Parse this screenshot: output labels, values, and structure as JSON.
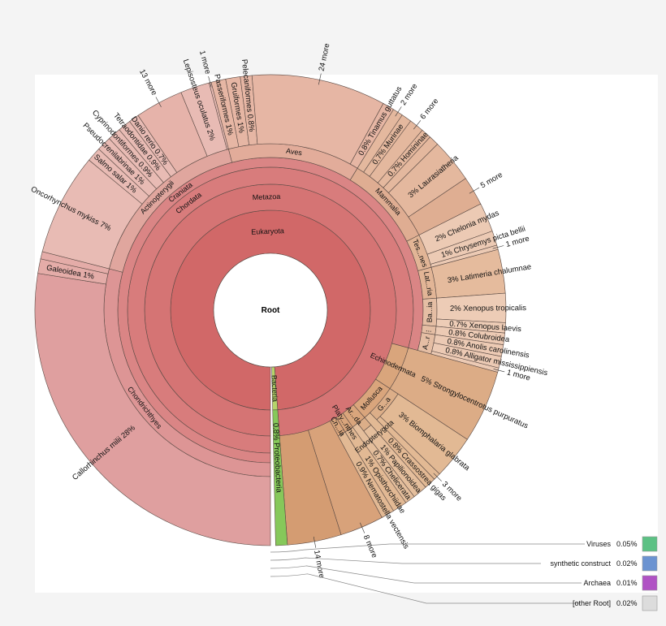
{
  "chart_data": {
    "type": "sunburst",
    "title": "",
    "unit": "percent of Root",
    "root": {
      "name": "Root",
      "children": [
        {
          "name": "Eukaryota",
          "color": "#d16868",
          "children": [
            {
              "name": "Metazoa",
              "color": "#d57474",
              "children": [
                {
                  "name": "Chordata",
                  "color": "#d87c7c",
                  "children": [
                    {
                      "name": "Craniata",
                      "color": "#da8585",
                      "children": [
                        {
                          "name": "Chondrichthyes",
                          "color": "#dd9595",
                          "leaf_color": "#df9f9f",
                          "children": [
                            {
                              "name": "Callorhinchus milii",
                              "pct": "28%",
                              "v": 27.5
                            },
                            {
                              "name": "Galeoidea",
                              "pct": "1%",
                              "v": 1,
                              "color": "#e4aca8"
                            },
                            {
                              "name": "",
                              "v": 0.5,
                              "color": "#e4aca8"
                            }
                          ]
                        },
                        {
                          "name": "Actinopterygii",
                          "color": "#e0a69e",
                          "leaf_color": "#e8bbb4",
                          "children": [
                            {
                              "name": "Oncorhynchus mykiss",
                              "pct": "7%",
                              "v": 7
                            },
                            {
                              "name": "Salmo salar",
                              "pct": "1%",
                              "v": 1
                            },
                            {
                              "name": "Pseudocrenilabrinae",
                              "pct": "1%",
                              "v": 1
                            },
                            {
                              "name": "Cyprinodontiformes",
                              "pct": "0.9%",
                              "v": 0.9
                            },
                            {
                              "name": "Tetraodontidae",
                              "pct": "0.9%",
                              "v": 0.9
                            },
                            {
                              "name": "Danio rerio",
                              "pct": "0.7%",
                              "v": 0.7
                            },
                            {
                              "name": "13 more",
                              "v": 3.3,
                              "color": "#e6b3aa"
                            },
                            {
                              "name": "Lepisosteus oculatus",
                              "pct": "2%",
                              "v": 2
                            },
                            {
                              "name": "1 more",
                              "v": 0.15
                            }
                          ]
                        },
                        {
                          "name": "Aves",
                          "color": "#e2ac9a",
                          "leaf_color": "#e6b6a4",
                          "children": [
                            {
                              "name": "Passeriformes",
                              "pct": "1%",
                              "v": 1
                            },
                            {
                              "name": "Gruiformes",
                              "pct": "1%",
                              "v": 1
                            },
                            {
                              "name": "Pelecaniformes",
                              "pct": "0.8%",
                              "v": 0.8
                            },
                            {
                              "name": "24 more",
                              "v": 9.2
                            },
                            {
                              "name": "Tinamus guttatus",
                              "pct": "0.8%",
                              "v": 0.8
                            }
                          ]
                        },
                        {
                          "name": "Mammalia",
                          "color": "#dfad92",
                          "leaf_color": "#e4b89e",
                          "children": [
                            {
                              "name": "2 more",
                              "v": 0.7
                            },
                            {
                              "name": "Murinae",
                              "pct": "0.7%",
                              "v": 0.7
                            },
                            {
                              "name": "6 more",
                              "v": 1
                            },
                            {
                              "name": "Homininae",
                              "pct": "0.7%",
                              "v": 0.7
                            },
                            {
                              "name": "",
                              "v": 0.7
                            },
                            {
                              "name": "Laurasiatheria",
                              "pct": "3%",
                              "v": 3
                            },
                            {
                              "name": "5 more",
                              "v": 2,
                              "color": "#dfae92"
                            }
                          ]
                        },
                        {
                          "name": "Tes...nes",
                          "color": "#e2b596",
                          "leaf_color": "#eccab4",
                          "children": [
                            {
                              "name": "Chelonia mydas",
                              "pct": "2%",
                              "v": 2
                            },
                            {
                              "name": "Chrysemys picta bellii",
                              "pct": "1%",
                              "v": 1
                            },
                            {
                              "name": "1 more",
                              "v": 0.3
                            }
                          ]
                        },
                        {
                          "name": "Lat...ria",
                          "color": "#e2b596",
                          "leaf_color": "#e5bb9d",
                          "children": [
                            {
                              "name": "Latimeria chalumnae",
                              "pct": "3%",
                              "v": 3
                            }
                          ]
                        },
                        {
                          "name": "Ba...ia",
                          "color": "#e5bea4",
                          "leaf_color": "#edccb6",
                          "children": [
                            {
                              "name": "Xenopus tropicalis",
                              "pct": "2%",
                              "v": 2
                            },
                            {
                              "name": "Xenopus laevis",
                              "pct": "0.7%",
                              "v": 0.7
                            }
                          ]
                        },
                        {
                          "name": "...",
                          "color": "#e5bea4",
                          "leaf_color": "#eccab4",
                          "children": [
                            {
                              "name": "Colubroidea",
                              "pct": "0.8%",
                              "v": 0.8
                            }
                          ]
                        },
                        {
                          "name": "A...r",
                          "color": "#e5bea4",
                          "leaf_color": "#eccab4",
                          "children": [
                            {
                              "name": "Anolis carolinensis",
                              "pct": "0.8%",
                              "v": 0.8
                            },
                            {
                              "name": "Alligator mississippiensis",
                              "pct": "0.8%",
                              "v": 0.8
                            },
                            {
                              "name": "1 more",
                              "v": 0.3
                            }
                          ]
                        }
                      ]
                    }
                  ]
                },
                {
                  "name": "Echinodermata",
                  "color": "#d9a57c",
                  "leaf_color": "#dcac86",
                  "children": [
                    {
                      "name": "Strongylocentrotus purpuratus",
                      "pct": "5%",
                      "v": 5
                    }
                  ]
                },
                {
                  "name": "Mollusca",
                  "color": "#d9a57c",
                  "leaf_color": "#e2b994",
                  "children": [
                    {
                      "name": "G...a",
                      "color": "#dcae88",
                      "children": [
                        {
                          "name": "Biomphalaria glabrata",
                          "pct": "3%",
                          "v": 3
                        },
                        {
                          "name": "3 more",
                          "v": 0.5
                        }
                      ]
                    },
                    {
                      "name": "Crassostrea gigas",
                      "pct": "0.8%",
                      "v": 0.8
                    }
                  ]
                },
                {
                  "name": "Ar...da",
                  "color": "#d9a57c",
                  "leaf_color": "#e4be9c",
                  "children": [
                    {
                      "name": "Endopterygota",
                      "color": "#dcae88",
                      "children": [
                        {
                          "name": "Papilionoidea",
                          "pct": "1%",
                          "v": 1
                        }
                      ]
                    },
                    {
                      "name": "Chelicerata",
                      "pct": "0.7%",
                      "v": 0.7
                    }
                  ]
                },
                {
                  "name": "Platy...nthes",
                  "color": "#d9a57c",
                  "leaf_color": "#e2b994",
                  "children": [
                    {
                      "name": "Opisthorchiidae",
                      "pct": "1%",
                      "v": 1
                    }
                  ]
                },
                {
                  "name": "Cn...ia",
                  "color": "#d9a57c",
                  "leaf_color": "#e2b994",
                  "children": [
                    {
                      "name": "Nematostella vectensis",
                      "pct": "0.9%",
                      "v": 0.9
                    }
                  ]
                },
                {
                  "name": "8 more",
                  "v": 3,
                  "color": "#d8a27a"
                },
                {
                  "name": "14 more",
                  "v": 3.7,
                  "color": "#d49c72"
                }
              ]
            }
          ]
        },
        {
          "name": "Bacteria",
          "color": "#b5d46a",
          "children": [
            {
              "name": "Proteobacteria",
              "pct": "0.8%",
              "v": 0.8,
              "color": "#86c85a"
            }
          ]
        }
      ]
    },
    "key": [
      {
        "name": "Viruses",
        "pct": "0.05%",
        "color": "#5cc184"
      },
      {
        "name": "synthetic construct",
        "pct": "0.02%",
        "color": "#6b93d1"
      },
      {
        "name": "Archaea",
        "pct": "0.01%",
        "color": "#b052c4"
      },
      {
        "name": "[other Root]",
        "pct": "0.02%",
        "color": "#dcdcdc"
      }
    ]
  }
}
